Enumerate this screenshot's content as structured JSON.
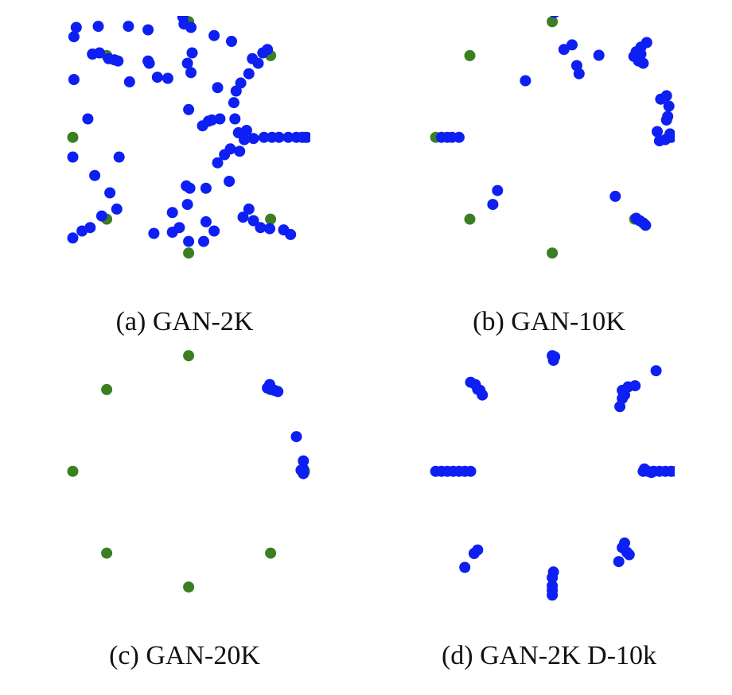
{
  "colors": {
    "real": "#3c7f23",
    "generated": "#0d1ff2"
  },
  "chart_data": [
    {
      "type": "scatter",
      "caption": "(a) GAN-2K",
      "xlim": [
        -1.05,
        1.05
      ],
      "ylim": [
        -1.05,
        1.05
      ],
      "grid": false,
      "real": [
        [
          0.0,
          1.0
        ],
        [
          0.707,
          0.707
        ],
        [
          1.0,
          0.0
        ],
        [
          0.707,
          -0.707
        ],
        [
          0.0,
          -1.0
        ],
        [
          -0.707,
          -0.707
        ],
        [
          -1.0,
          0.0
        ],
        [
          -0.707,
          0.707
        ]
      ],
      "generated": [
        [
          -0.97,
          0.95
        ],
        [
          -0.78,
          0.96
        ],
        [
          -0.52,
          0.96
        ],
        [
          -0.35,
          0.93
        ],
        [
          -0.05,
          1.04
        ],
        [
          -0.04,
          0.98
        ],
        [
          0.02,
          0.95
        ],
        [
          0.03,
          0.73
        ],
        [
          0.22,
          0.88
        ],
        [
          0.37,
          0.83
        ],
        [
          0.55,
          0.68
        ],
        [
          0.64,
          0.73
        ],
        [
          0.68,
          0.76
        ],
        [
          0.6,
          0.64
        ],
        [
          0.52,
          0.55
        ],
        [
          0.45,
          0.47
        ],
        [
          0.41,
          0.4
        ],
        [
          0.39,
          0.3
        ],
        [
          0.4,
          0.16
        ],
        [
          0.43,
          0.04
        ],
        [
          0.48,
          -0.02
        ],
        [
          0.56,
          -0.01
        ],
        [
          0.65,
          0.0
        ],
        [
          0.72,
          0.0
        ],
        [
          0.78,
          0.0
        ],
        [
          0.86,
          0.0
        ],
        [
          0.93,
          0.0
        ],
        [
          0.98,
          0.0
        ],
        [
          1.02,
          0.0
        ],
        [
          0.5,
          0.06
        ],
        [
          0.44,
          -0.12
        ],
        [
          0.36,
          -0.1
        ],
        [
          0.31,
          -0.15
        ],
        [
          0.25,
          -0.22
        ],
        [
          0.35,
          -0.38
        ],
        [
          0.52,
          -0.62
        ],
        [
          0.56,
          -0.72
        ],
        [
          0.62,
          -0.78
        ],
        [
          0.7,
          -0.79
        ],
        [
          0.82,
          -0.8
        ],
        [
          0.88,
          -0.84
        ],
        [
          0.47,
          -0.69
        ],
        [
          0.22,
          -0.81
        ],
        [
          -0.08,
          -0.78
        ],
        [
          -0.14,
          -0.82
        ],
        [
          -0.3,
          -0.83
        ],
        [
          -0.01,
          -0.58
        ],
        [
          -0.14,
          -0.65
        ],
        [
          0.15,
          -0.73
        ],
        [
          0.0,
          -0.9
        ],
        [
          0.13,
          -0.9
        ],
        [
          -0.02,
          -0.42
        ],
        [
          0.01,
          -0.44
        ],
        [
          0.15,
          -0.44
        ],
        [
          -0.62,
          -0.62
        ],
        [
          -0.75,
          -0.68
        ],
        [
          -0.85,
          -0.78
        ],
        [
          -0.92,
          -0.81
        ],
        [
          -1.0,
          -0.87
        ],
        [
          -0.68,
          -0.48
        ],
        [
          -0.81,
          -0.33
        ],
        [
          -1.0,
          -0.17
        ],
        [
          -0.6,
          -0.17
        ],
        [
          -0.87,
          0.16
        ],
        [
          -0.18,
          0.51
        ],
        [
          -0.27,
          0.52
        ],
        [
          0.0,
          0.24
        ],
        [
          0.17,
          0.14
        ],
        [
          0.2,
          0.15
        ],
        [
          0.12,
          0.1
        ],
        [
          0.25,
          0.43
        ],
        [
          0.02,
          0.56
        ],
        [
          -0.01,
          0.64
        ],
        [
          -0.35,
          0.66
        ],
        [
          -0.34,
          0.64
        ],
        [
          -0.83,
          0.72
        ],
        [
          -0.61,
          0.66
        ],
        [
          -0.64,
          0.67
        ],
        [
          -0.77,
          0.73
        ],
        [
          -0.99,
          0.5
        ],
        [
          -0.99,
          0.87
        ],
        [
          -0.51,
          0.48
        ],
        [
          -0.69,
          0.68
        ],
        [
          0.27,
          0.16
        ]
      ]
    },
    {
      "type": "scatter",
      "caption": "(b) GAN-10K",
      "xlim": [
        -1.05,
        1.05
      ],
      "ylim": [
        -1.05,
        1.05
      ],
      "grid": false,
      "real": [
        [
          0.0,
          1.0
        ],
        [
          0.707,
          0.707
        ],
        [
          1.0,
          0.0
        ],
        [
          0.707,
          -0.707
        ],
        [
          0.0,
          -1.0
        ],
        [
          -0.707,
          -0.707
        ],
        [
          -1.0,
          0.0
        ],
        [
          -0.707,
          0.707
        ]
      ],
      "generated": [
        [
          0.01,
          1.11
        ],
        [
          0.02,
          1.08
        ],
        [
          0.1,
          0.76
        ],
        [
          0.17,
          0.8
        ],
        [
          0.21,
          0.62
        ],
        [
          0.23,
          0.55
        ],
        [
          0.4,
          0.71
        ],
        [
          0.72,
          0.74
        ],
        [
          0.76,
          0.72
        ],
        [
          0.74,
          0.66
        ],
        [
          0.78,
          0.64
        ],
        [
          0.7,
          0.7
        ],
        [
          0.76,
          0.78
        ],
        [
          0.81,
          0.82
        ],
        [
          0.93,
          0.33
        ],
        [
          0.98,
          0.36
        ],
        [
          1.0,
          0.27
        ],
        [
          0.98,
          0.15
        ],
        [
          1.01,
          0.03
        ],
        [
          0.97,
          -0.02
        ],
        [
          1.02,
          0.0
        ],
        [
          0.92,
          -0.03
        ],
        [
          0.9,
          0.05
        ],
        [
          -0.95,
          0.0
        ],
        [
          -0.9,
          0.0
        ],
        [
          -0.86,
          0.0
        ],
        [
          -0.8,
          0.0
        ],
        [
          -0.23,
          0.49
        ],
        [
          -0.47,
          -0.46
        ],
        [
          -0.51,
          -0.58
        ],
        [
          0.54,
          -0.51
        ],
        [
          0.72,
          -0.7
        ],
        [
          0.75,
          -0.72
        ],
        [
          0.78,
          -0.74
        ],
        [
          0.8,
          -0.76
        ],
        [
          0.99,
          0.18
        ]
      ]
    },
    {
      "type": "scatter",
      "caption": "(c) GAN-20K",
      "xlim": [
        -1.05,
        1.05
      ],
      "ylim": [
        -1.05,
        1.05
      ],
      "grid": false,
      "real": [
        [
          0.0,
          1.0
        ],
        [
          0.707,
          0.707
        ],
        [
          1.0,
          0.0
        ],
        [
          0.707,
          -0.707
        ],
        [
          0.0,
          -1.0
        ],
        [
          -0.707,
          -0.707
        ],
        [
          -1.0,
          0.0
        ],
        [
          -0.707,
          0.707
        ]
      ],
      "generated": [
        [
          0.68,
          0.72
        ],
        [
          0.71,
          0.71
        ],
        [
          0.74,
          0.7
        ],
        [
          0.77,
          0.69
        ],
        [
          0.7,
          0.75
        ],
        [
          0.93,
          0.3
        ],
        [
          0.99,
          0.09
        ],
        [
          0.99,
          0.02
        ],
        [
          0.99,
          -0.02
        ],
        [
          0.97,
          0.01
        ]
      ]
    },
    {
      "type": "scatter",
      "caption": "(d) GAN-2K D-10k",
      "xlim": [
        -1.05,
        1.05
      ],
      "ylim": [
        -1.05,
        1.05
      ],
      "grid": false,
      "real": [],
      "generated": [
        [
          0.0,
          1.0
        ],
        [
          0.01,
          0.96
        ],
        [
          0.02,
          0.99
        ],
        [
          -0.7,
          0.77
        ],
        [
          -0.66,
          0.75
        ],
        [
          -0.64,
          0.71
        ],
        [
          -0.6,
          0.66
        ],
        [
          -0.62,
          0.7
        ],
        [
          0.62,
          0.66
        ],
        [
          0.6,
          0.63
        ],
        [
          0.58,
          0.56
        ],
        [
          0.6,
          0.7
        ],
        [
          0.65,
          0.73
        ],
        [
          0.71,
          0.74
        ],
        [
          0.89,
          0.87
        ],
        [
          -1.0,
          0.0
        ],
        [
          -0.95,
          0.0
        ],
        [
          -0.9,
          0.0
        ],
        [
          -0.85,
          0.0
        ],
        [
          -0.8,
          0.0
        ],
        [
          -0.75,
          0.0
        ],
        [
          -0.7,
          0.0
        ],
        [
          0.78,
          0.0
        ],
        [
          0.82,
          0.0
        ],
        [
          0.87,
          0.0
        ],
        [
          0.92,
          0.0
        ],
        [
          0.97,
          0.0
        ],
        [
          1.02,
          0.0
        ],
        [
          1.06,
          0.0
        ],
        [
          0.85,
          -0.01
        ],
        [
          0.79,
          0.02
        ],
        [
          0.6,
          -0.66
        ],
        [
          0.64,
          -0.7
        ],
        [
          0.66,
          -0.72
        ],
        [
          0.62,
          -0.62
        ],
        [
          0.57,
          -0.78
        ],
        [
          -0.67,
          -0.71
        ],
        [
          -0.64,
          -0.68
        ],
        [
          -0.75,
          -0.83
        ],
        [
          0.0,
          -0.92
        ],
        [
          0.0,
          -0.99
        ],
        [
          0.0,
          -1.03
        ],
        [
          0.0,
          -1.07
        ],
        [
          0.01,
          -0.87
        ]
      ]
    }
  ]
}
